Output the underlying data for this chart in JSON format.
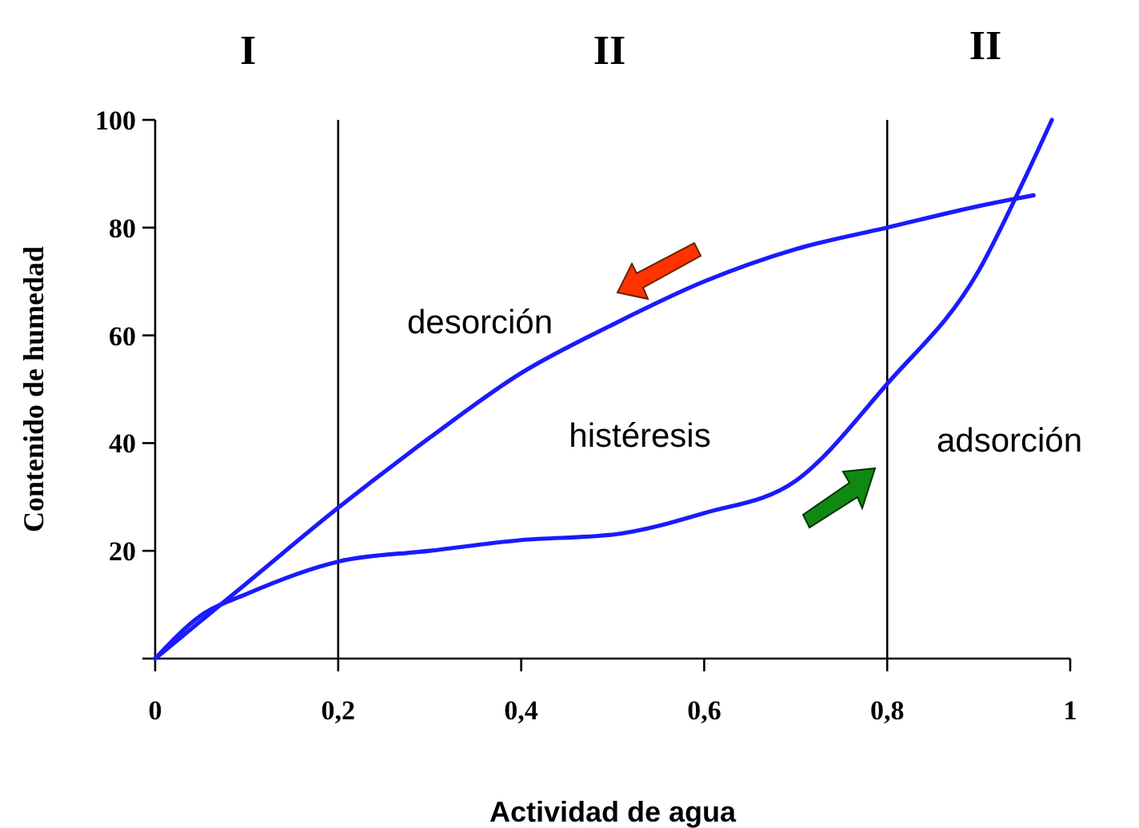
{
  "chart_data": {
    "type": "line",
    "xlabel": "Actividad de agua",
    "ylabel": "Contenido de humedad",
    "xlim": [
      0,
      1
    ],
    "ylim": [
      0,
      100
    ],
    "xticks": [
      0,
      {
        "value": 0.2,
        "label": "0,2"
      },
      {
        "value": 0.4,
        "label": "0,4"
      },
      {
        "value": 0.6,
        "label": "0,6"
      },
      {
        "value": 0.8,
        "label": "0,8"
      },
      1
    ],
    "yticks": [
      {
        "value": 0,
        "label": null
      },
      20,
      40,
      60,
      80,
      100
    ],
    "series": [
      {
        "color": "#1a1aff",
        "x": [
          0,
          0.05,
          0.1,
          0.2,
          0.3,
          0.4,
          0.5,
          0.6,
          0.7,
          0.8,
          0.9,
          0.96
        ],
        "values": [
          0,
          7,
          14,
          28,
          41,
          53,
          62,
          70,
          76,
          80,
          84,
          86
        ]
      },
      {
        "color": "#1a1aff",
        "x": [
          0,
          0.05,
          0.1,
          0.2,
          0.3,
          0.4,
          0.5,
          0.6,
          0.7,
          0.8,
          0.9,
          0.95,
          0.98
        ],
        "values": [
          0,
          8,
          12,
          18,
          20,
          22,
          23,
          27,
          33,
          51,
          72,
          89,
          100
        ]
      }
    ],
    "ref_lines": [
      {
        "axis": "x",
        "value": 0.2,
        "color": "#000000"
      },
      {
        "axis": "x",
        "value": 0.8,
        "color": "#000000"
      }
    ],
    "annotations": [
      "I",
      "II",
      "II",
      "desorción",
      "histéresis",
      "adsorción"
    ],
    "grid": false,
    "marker": "none",
    "line_style": "solid"
  }
}
